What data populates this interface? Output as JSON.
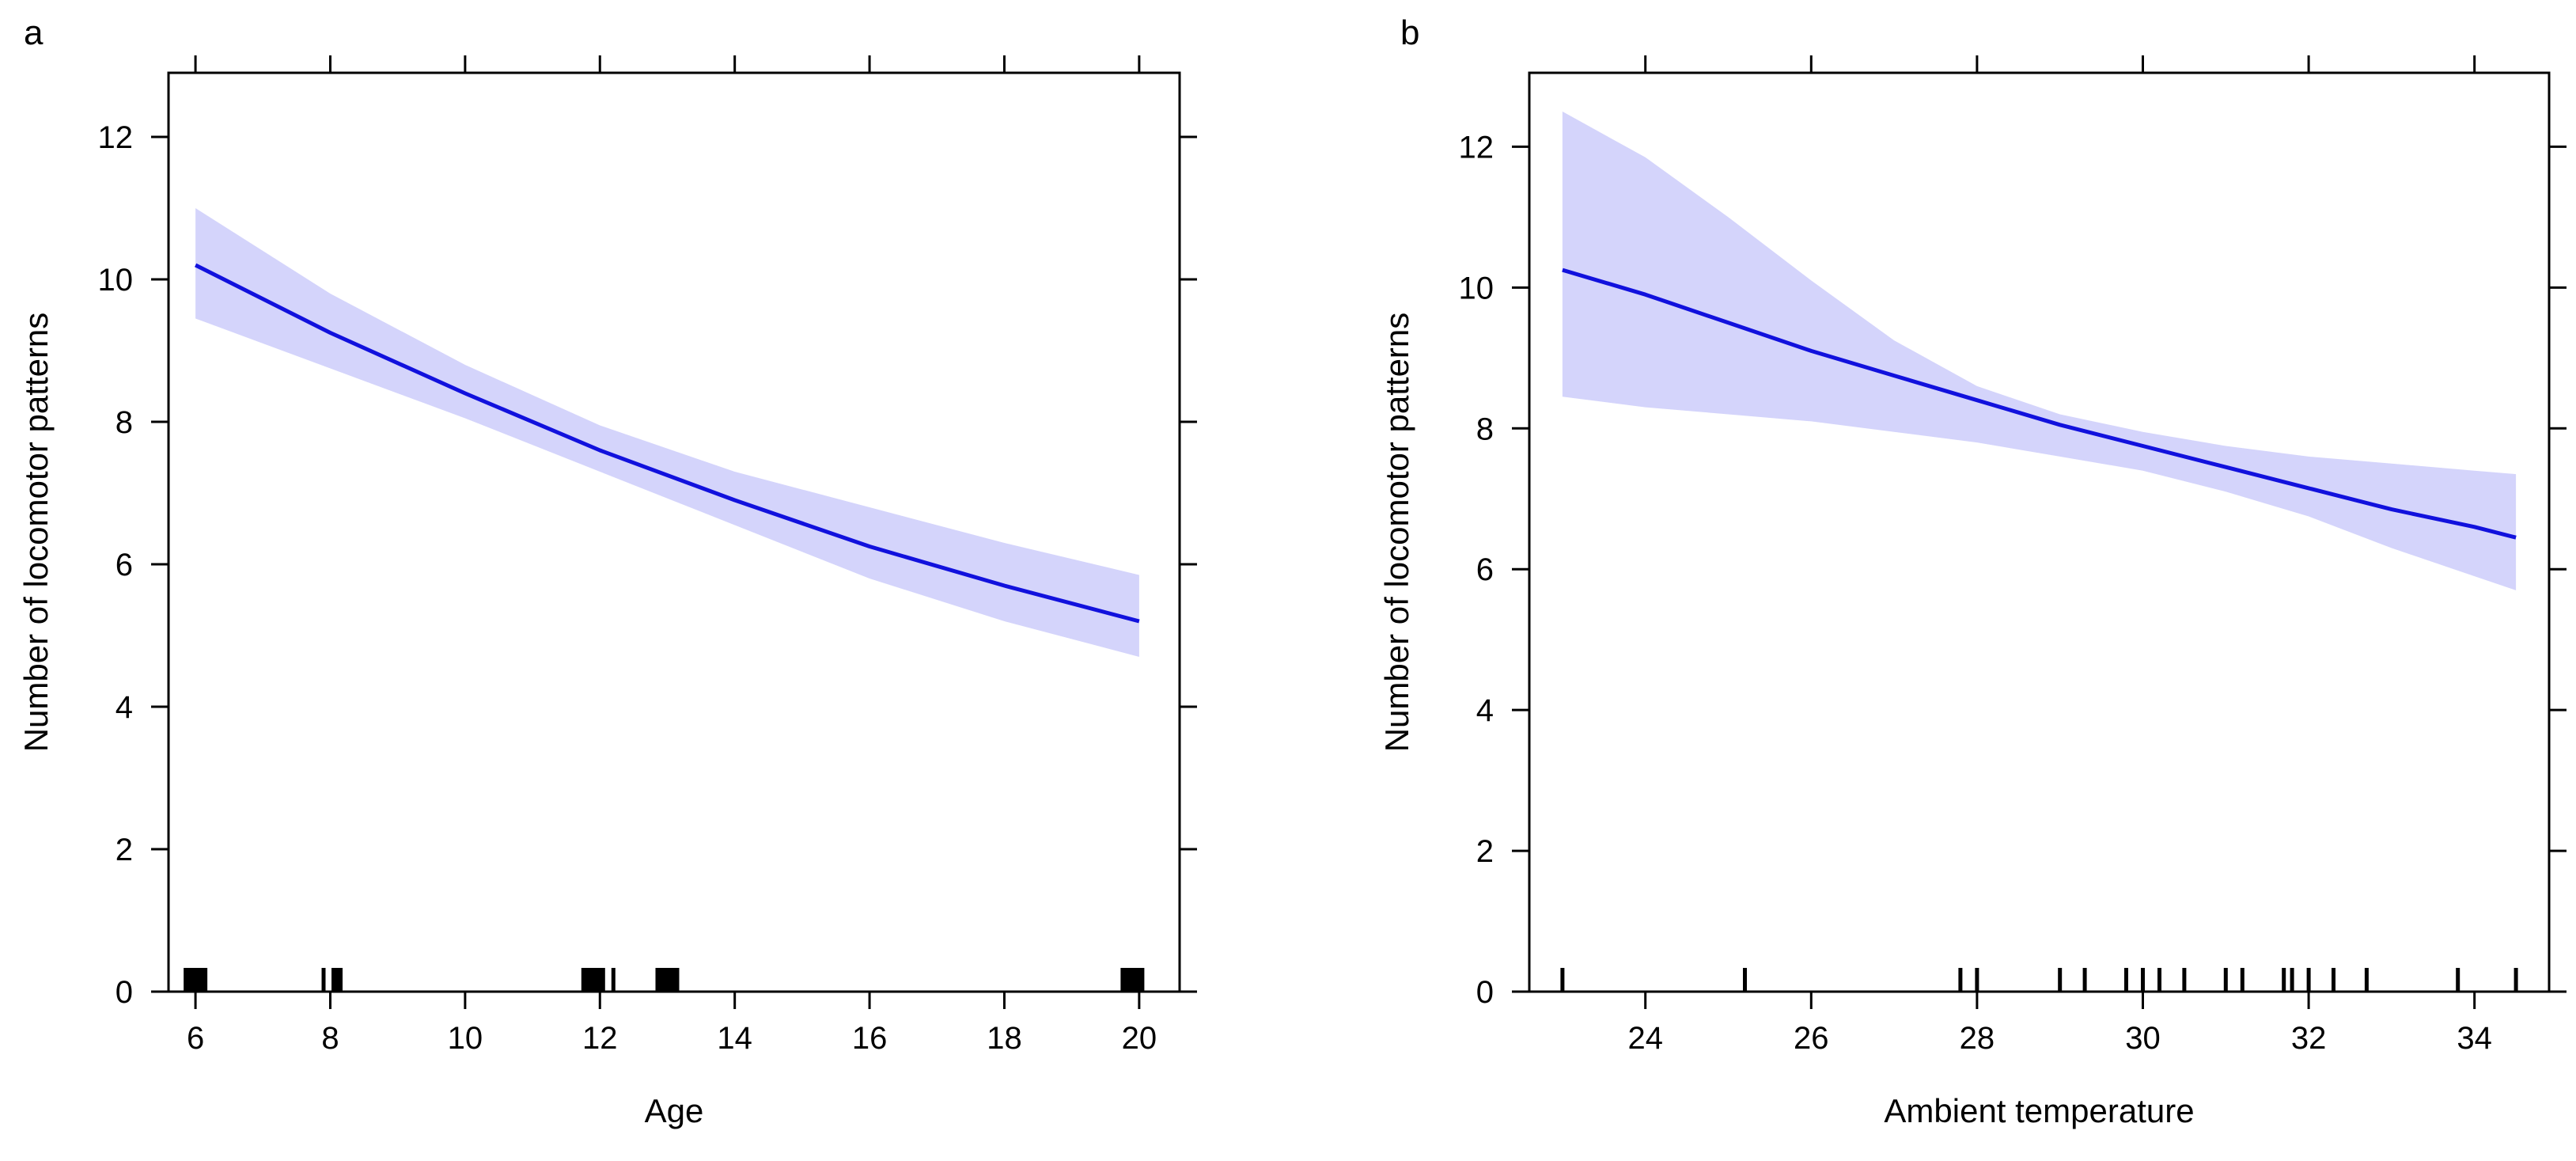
{
  "chart_data": [
    {
      "type": "line",
      "panel_label": "a",
      "xlabel": "Age",
      "ylabel": "Number of locomotor patterns",
      "xlim": [
        5.6,
        20.6
      ],
      "ylim": [
        0,
        12.9
      ],
      "xticks": [
        6,
        8,
        10,
        12,
        14,
        16,
        18,
        20
      ],
      "yticks": [
        0,
        2,
        4,
        6,
        8,
        10,
        12
      ],
      "series": [
        {
          "name": "fit",
          "x": [
            6,
            8,
            10,
            12,
            14,
            16,
            18,
            20
          ],
          "y": [
            10.2,
            9.25,
            8.4,
            7.6,
            6.9,
            6.25,
            5.7,
            5.2
          ],
          "color": "#1111dd"
        },
        {
          "name": "ci_upper",
          "x": [
            6,
            8,
            10,
            12,
            14,
            16,
            18,
            20
          ],
          "y": [
            11.0,
            9.8,
            8.8,
            7.95,
            7.3,
            6.8,
            6.3,
            5.85
          ]
        },
        {
          "name": "ci_lower",
          "x": [
            6,
            8,
            10,
            12,
            14,
            16,
            18,
            20
          ],
          "y": [
            9.45,
            8.75,
            8.05,
            7.3,
            6.55,
            5.8,
            5.2,
            4.7
          ]
        }
      ],
      "band_color": "#d4d4fb",
      "rug": [
        {
          "x": 6.0,
          "weight": 3
        },
        {
          "x": 7.9,
          "weight": 1
        },
        {
          "x": 8.1,
          "weight": 2
        },
        {
          "x": 11.9,
          "weight": 3
        },
        {
          "x": 12.2,
          "weight": 1
        },
        {
          "x": 13.0,
          "weight": 3
        },
        {
          "x": 19.9,
          "weight": 3
        }
      ]
    },
    {
      "type": "line",
      "panel_label": "b",
      "xlabel": "Ambient temperature",
      "ylabel": "Number of locomotor patterns",
      "xlim": [
        22.6,
        34.9
      ],
      "ylim": [
        0,
        13.05
      ],
      "xticks": [
        24,
        26,
        28,
        30,
        32,
        34
      ],
      "yticks": [
        0,
        2,
        4,
        6,
        8,
        10,
        12
      ],
      "series": [
        {
          "name": "fit",
          "x": [
            23,
            24,
            25,
            26,
            27,
            28,
            29,
            30,
            31,
            32,
            33,
            34,
            34.5
          ],
          "y": [
            10.25,
            9.9,
            9.5,
            9.1,
            8.75,
            8.4,
            8.05,
            7.75,
            7.45,
            7.15,
            6.85,
            6.6,
            6.45
          ],
          "color": "#1111dd"
        },
        {
          "name": "ci_upper",
          "x": [
            23,
            24,
            25,
            26,
            27,
            28,
            29,
            30,
            31,
            32,
            33,
            34,
            34.5
          ],
          "y": [
            12.5,
            11.85,
            11.0,
            10.1,
            9.25,
            8.6,
            8.2,
            7.95,
            7.75,
            7.6,
            7.5,
            7.4,
            7.35
          ]
        },
        {
          "name": "ci_lower",
          "x": [
            23,
            24,
            25,
            26,
            27,
            28,
            29,
            30,
            31,
            32,
            33,
            34,
            34.5
          ],
          "y": [
            8.45,
            8.3,
            8.2,
            8.1,
            7.95,
            7.8,
            7.6,
            7.4,
            7.1,
            6.75,
            6.3,
            5.9,
            5.7
          ]
        }
      ],
      "band_color": "#d4d4fb",
      "rug": [
        {
          "x": 23.0,
          "weight": 1
        },
        {
          "x": 25.2,
          "weight": 1
        },
        {
          "x": 27.8,
          "weight": 1
        },
        {
          "x": 28.0,
          "weight": 1
        },
        {
          "x": 29.0,
          "weight": 1
        },
        {
          "x": 29.3,
          "weight": 1
        },
        {
          "x": 29.8,
          "weight": 1
        },
        {
          "x": 30.0,
          "weight": 1
        },
        {
          "x": 30.2,
          "weight": 1
        },
        {
          "x": 30.5,
          "weight": 1
        },
        {
          "x": 31.0,
          "weight": 1
        },
        {
          "x": 31.2,
          "weight": 1
        },
        {
          "x": 31.7,
          "weight": 1
        },
        {
          "x": 31.8,
          "weight": 1
        },
        {
          "x": 32.0,
          "weight": 1
        },
        {
          "x": 32.3,
          "weight": 1
        },
        {
          "x": 32.7,
          "weight": 1
        },
        {
          "x": 33.8,
          "weight": 1
        },
        {
          "x": 34.5,
          "weight": 1
        }
      ]
    }
  ]
}
